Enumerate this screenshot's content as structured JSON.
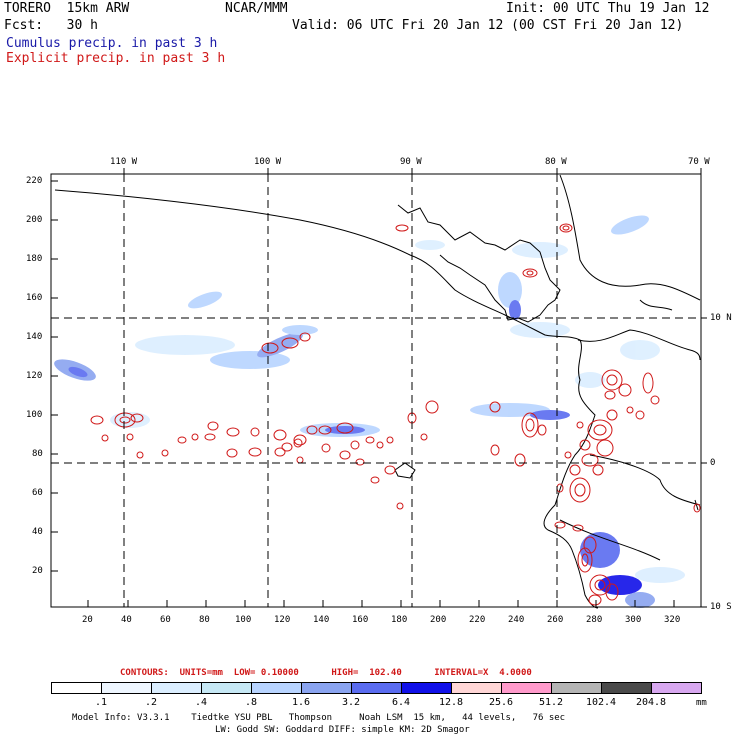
{
  "header": {
    "model": "TORERO  15km ARW",
    "org": "NCAR/MMM",
    "init": "Init: 00 UTC Thu 19 Jan 12",
    "fcst": "Fcst:   30 h",
    "valid": "Valid: 06 UTC Fri 20 Jan 12 (00 CST Fri 20 Jan 12)",
    "legend_cumulus": "Cumulus precip. in past 3 h",
    "legend_explicit": "Explicit precip. in past 3 h"
  },
  "map": {
    "top_lon_labels": [
      "110 W",
      "100 W",
      "90 W",
      "80 W",
      "70 W"
    ],
    "right_lat_labels": [
      "10 N",
      "0",
      "10 S"
    ],
    "left_y_ticks": [
      "220",
      "200",
      "180",
      "160",
      "140",
      "120",
      "100",
      "80",
      "60",
      "40",
      "20"
    ],
    "bottom_x_ticks": [
      "20",
      "40",
      "60",
      "80",
      "100",
      "120",
      "140",
      "160",
      "180",
      "200",
      "220",
      "240",
      "260",
      "280",
      "300",
      "320"
    ]
  },
  "contour_info": {
    "text": "CONTOURS:  UNITS=mm  LOW= 0.10000      HIGH=  102.40      INTERVAL=X  4.0000"
  },
  "colorbar": {
    "colors": [
      "#ffffff",
      "#eef6ff",
      "#dbeeff",
      "#c6e8f5",
      "#b8d4ff",
      "#8aa4f0",
      "#5a6cf0",
      "#1010e8",
      "#ffd6d6",
      "#ff9acb",
      "#b4b4b4",
      "#4a4a4a",
      "#d8a8f0"
    ],
    "labels": [
      ".1",
      ".2",
      ".4",
      ".8",
      "1.6",
      "3.2",
      "6.4",
      "12.8",
      "25.6",
      "51.2",
      "102.4",
      "204.8"
    ],
    "units": "mm"
  },
  "footer": {
    "line1": "Model Info: V3.3.1    Tiedtke YSU PBL   Thompson     Noah LSM  15 km,   44 levels,   76 sec",
    "line2": "LW: Godd SW: Goddard DIFF: simple KM: 2D Smagor"
  }
}
